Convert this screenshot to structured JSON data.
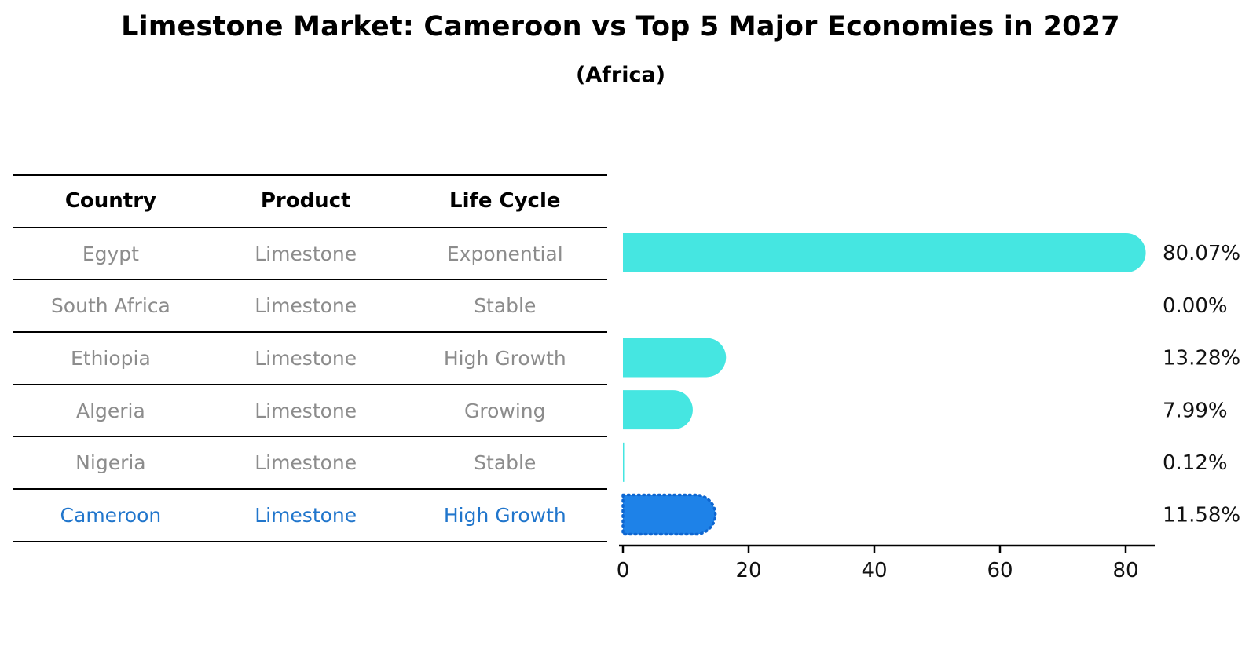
{
  "title": "Limestone Market: Cameroon vs Top 5 Major Economies in 2027",
  "subtitle": "(Africa)",
  "table": {
    "headers": {
      "country": "Country",
      "product": "Product",
      "life_cycle": "Life Cycle"
    },
    "rows": [
      {
        "country": "Egypt",
        "product": "Limestone",
        "life_cycle": "Exponential"
      },
      {
        "country": "South Africa",
        "product": "Limestone",
        "life_cycle": "Stable"
      },
      {
        "country": "Ethiopia",
        "product": "Limestone",
        "life_cycle": "High Growth"
      },
      {
        "country": "Algeria",
        "product": "Limestone",
        "life_cycle": "Growing"
      },
      {
        "country": "Nigeria",
        "product": "Limestone",
        "life_cycle": "Stable"
      },
      {
        "country": "Cameroon",
        "product": "Limestone",
        "life_cycle": "High Growth"
      }
    ],
    "highlight_row": 5
  },
  "chart_data": {
    "type": "bar",
    "orientation": "horizontal",
    "title": "Limestone Market: Cameroon vs Top 5 Major Economies in 2027",
    "subtitle": "(Africa)",
    "categories": [
      "Egypt",
      "South Africa",
      "Ethiopia",
      "Algeria",
      "Nigeria",
      "Cameroon"
    ],
    "values": [
      80.07,
      0.0,
      13.28,
      7.99,
      0.12,
      11.58
    ],
    "value_labels": [
      "80.07%",
      "0.00%",
      "13.28%",
      "7.99%",
      "0.12%",
      "11.58%"
    ],
    "unit": "%",
    "xlabel": "",
    "ylabel": "",
    "xlim": [
      0,
      85
    ],
    "x_ticks": [
      0,
      20,
      40,
      60,
      80
    ],
    "grid": "off",
    "legend": "none",
    "highlight_index": 5,
    "bar_color": "#45E6E1",
    "highlight_color": "#1E82E8",
    "highlight_border": "#0E66D0",
    "axis_color": "#000000",
    "label_color": "#111111"
  }
}
